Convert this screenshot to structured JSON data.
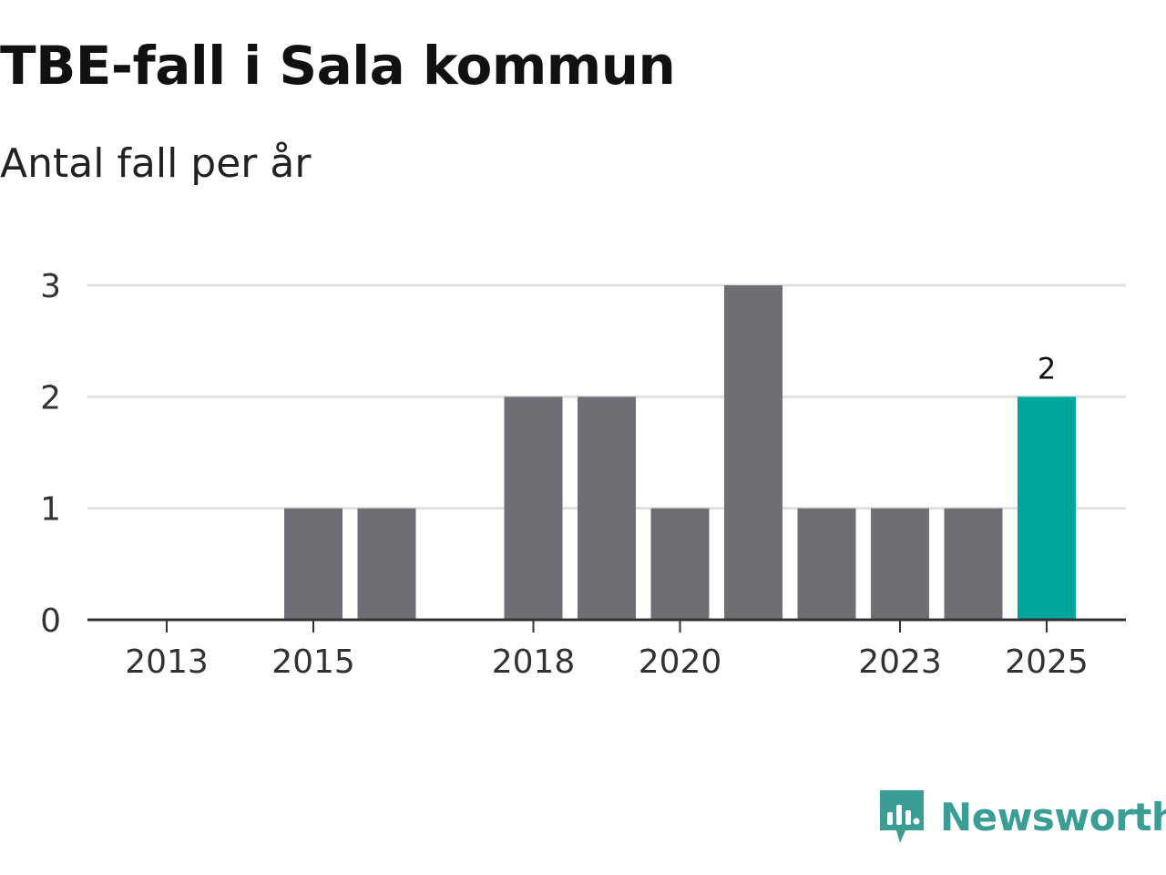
{
  "chart_data": {
    "type": "bar",
    "title": "TBE-fall i Sala kommun",
    "subtitle": "Antal fall per år",
    "categories": [
      "2013",
      "2014",
      "2015",
      "2016",
      "2017",
      "2018",
      "2019",
      "2020",
      "2021",
      "2022",
      "2023",
      "2024",
      "2025"
    ],
    "values": [
      0,
      0,
      1,
      1,
      0,
      2,
      2,
      1,
      3,
      1,
      1,
      1,
      2
    ],
    "x_tick_labels": [
      "2013",
      "2015",
      "2018",
      "2020",
      "2023",
      "2025"
    ],
    "y_ticks": [
      0,
      1,
      2,
      3
    ],
    "ylim": [
      0,
      3
    ],
    "xlabel": "",
    "ylabel": "",
    "highlight_category": "2025",
    "highlight_label": "2",
    "grid": true,
    "colors": {
      "bar": "#6f6e74",
      "highlight": "#00a69c",
      "grid": "#e0e0e0",
      "axis": "#333333",
      "text": "#333333"
    }
  },
  "brand": {
    "name": "Newsworthy",
    "icon": "newsworthy-logo-icon",
    "color": "#3a9e96"
  }
}
